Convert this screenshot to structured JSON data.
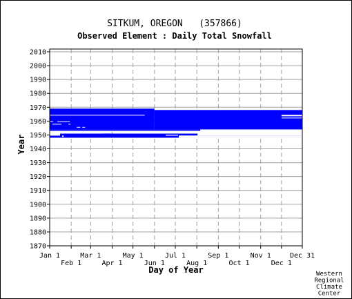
{
  "title": "SITKUM, OREGON   (357866)",
  "subtitle": "Observed Element : Daily Total Snowfall",
  "credit": [
    "Western",
    "Regional",
    "Climate",
    "Center"
  ],
  "colors": {
    "data": "#0000ff",
    "grid": "#a0a0a0",
    "axis": "#000000"
  },
  "chart_data": {
    "type": "heatmap",
    "xlabel": "Day of Year",
    "ylabel": "Year",
    "ylim": [
      1870,
      2012
    ],
    "xlim": [
      1,
      365
    ],
    "grid": true,
    "y_ticks": [
      2010,
      2000,
      1990,
      1980,
      1970,
      1960,
      1950,
      1940,
      1930,
      1920,
      1910,
      1900,
      1890,
      1880,
      1870
    ],
    "x_ticks_upper": [
      {
        "label": "Jan 1",
        "day": 1
      },
      {
        "label": "Mar 1",
        "day": 60
      },
      {
        "label": "May 1",
        "day": 121
      },
      {
        "label": "Jul 1",
        "day": 182
      },
      {
        "label": "Sep 1",
        "day": 244
      },
      {
        "label": "Nov 1",
        "day": 305
      },
      {
        "label": "Dec 31",
        "day": 365
      }
    ],
    "x_ticks_lower": [
      {
        "label": "Feb 1",
        "day": 32
      },
      {
        "label": "Apr 1",
        "day": 91
      },
      {
        "label": "Jun 1",
        "day": 152
      },
      {
        "label": "Aug 1",
        "day": 213
      },
      {
        "label": "Oct 1",
        "day": 274
      },
      {
        "label": "Dec 1",
        "day": 335
      }
    ],
    "observed_bands": [
      {
        "start_year": 1948.0,
        "end_year": 1951.0,
        "start_day": 1,
        "end_day": 365
      },
      {
        "start_year": 1953.0,
        "end_year": 1954.0,
        "start_day": 1,
        "end_day": 218
      },
      {
        "start_year": 1954.0,
        "end_year": 1969.0,
        "start_day": 1,
        "end_day": 152
      },
      {
        "start_year": 1954.0,
        "end_year": 1968.0,
        "start_day": 152,
        "end_day": 365
      }
    ],
    "missing_gaps": [
      {
        "start_year": 1964.0,
        "end_year": 1964.5,
        "start_day": 1,
        "end_day": 138
      },
      {
        "start_year": 1963.5,
        "end_year": 1964.5,
        "start_day": 335,
        "end_day": 365
      },
      {
        "start_year": 1962.0,
        "end_year": 1962.5,
        "start_day": 335,
        "end_day": 365
      },
      {
        "start_year": 1959.4,
        "end_year": 1959.9,
        "start_day": 12,
        "end_day": 30
      },
      {
        "start_year": 1959.4,
        "end_year": 1959.9,
        "start_day": 1,
        "end_day": 6
      },
      {
        "start_year": 1957.7,
        "end_year": 1958.0,
        "start_day": 5,
        "end_day": 18
      },
      {
        "start_year": 1957.7,
        "end_year": 1958.0,
        "start_day": 28,
        "end_day": 31
      },
      {
        "start_year": 1955.5,
        "end_year": 1955.8,
        "start_day": 40,
        "end_day": 45
      },
      {
        "start_year": 1955.5,
        "end_year": 1955.8,
        "start_day": 48,
        "end_day": 52
      },
      {
        "start_year": 1951.0,
        "end_year": 1952.5,
        "start_day": 1,
        "end_day": 77
      },
      {
        "start_year": 1951.0,
        "end_year": 1952.5,
        "start_day": 92,
        "end_day": 365
      },
      {
        "start_year": 1949.5,
        "end_year": 1951.0,
        "start_day": 1,
        "end_day": 16
      },
      {
        "start_year": 1948.6,
        "end_year": 1949.6,
        "start_day": 19,
        "end_day": 21
      },
      {
        "start_year": 1949.5,
        "end_year": 1950.1,
        "start_day": 168,
        "end_day": 186
      },
      {
        "start_year": 1948.0,
        "end_year": 1949.6,
        "start_day": 187,
        "end_day": 365
      },
      {
        "start_year": 1949.6,
        "end_year": 1951.0,
        "start_day": 214,
        "end_day": 365
      },
      {
        "start_year": 1948.8,
        "end_year": 1949.4,
        "start_day": 355,
        "end_day": 365
      }
    ],
    "extra_marks": [
      {
        "start_year": 1955.6,
        "end_year": 1955.9,
        "start_day": 25,
        "end_day": 30
      },
      {
        "start_year": 1950.6,
        "end_year": 1951.0,
        "start_day": 78,
        "end_day": 91
      }
    ]
  }
}
